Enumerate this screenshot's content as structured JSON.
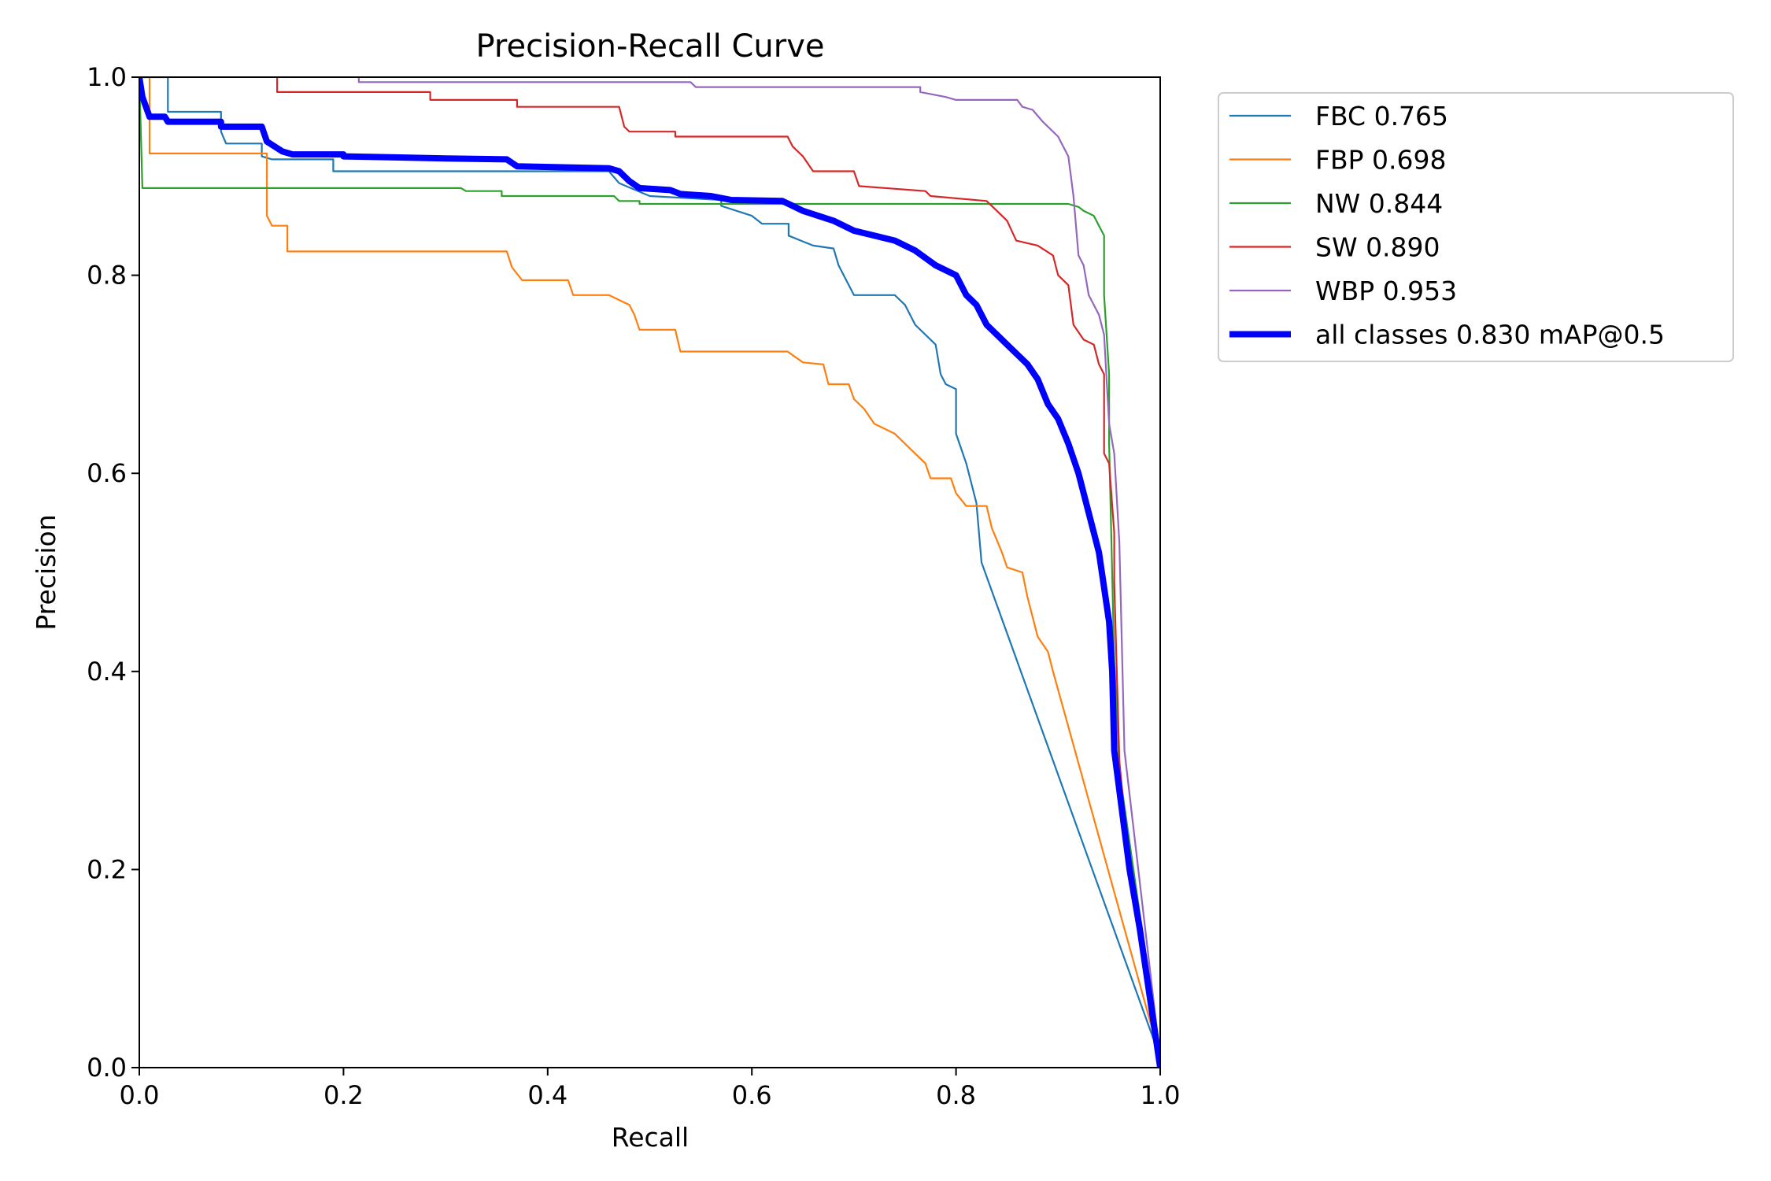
{
  "chart_data": {
    "type": "line",
    "title": "Precision-Recall Curve",
    "xlabel": "Recall",
    "ylabel": "Precision",
    "xlim": [
      0,
      1
    ],
    "ylim": [
      0,
      1
    ],
    "xticks": [
      "0.0",
      "0.2",
      "0.4",
      "0.6",
      "0.8",
      "1.0"
    ],
    "yticks": [
      "0.0",
      "0.2",
      "0.4",
      "0.6",
      "0.8",
      "1.0"
    ],
    "grid": false,
    "legend_position": "outside-top-right",
    "series": [
      {
        "name": "FBC 0.765",
        "color": "#1f77b4",
        "width": "thin",
        "points": [
          [
            0,
            1
          ],
          [
            0.028,
            1
          ],
          [
            0.028,
            0.965
          ],
          [
            0.08,
            0.965
          ],
          [
            0.08,
            0.945
          ],
          [
            0.085,
            0.933
          ],
          [
            0.12,
            0.933
          ],
          [
            0.12,
            0.92
          ],
          [
            0.13,
            0.917
          ],
          [
            0.19,
            0.917
          ],
          [
            0.19,
            0.905
          ],
          [
            0.46,
            0.905
          ],
          [
            0.47,
            0.893
          ],
          [
            0.5,
            0.88
          ],
          [
            0.57,
            0.876
          ],
          [
            0.57,
            0.87
          ],
          [
            0.6,
            0.86
          ],
          [
            0.61,
            0.852
          ],
          [
            0.636,
            0.852
          ],
          [
            0.636,
            0.84
          ],
          [
            0.66,
            0.83
          ],
          [
            0.68,
            0.827
          ],
          [
            0.685,
            0.81
          ],
          [
            0.69,
            0.8
          ],
          [
            0.7,
            0.78
          ],
          [
            0.74,
            0.78
          ],
          [
            0.75,
            0.77
          ],
          [
            0.76,
            0.75
          ],
          [
            0.78,
            0.73
          ],
          [
            0.785,
            0.7
          ],
          [
            0.79,
            0.69
          ],
          [
            0.8,
            0.685
          ],
          [
            0.8,
            0.64
          ],
          [
            0.81,
            0.61
          ],
          [
            0.82,
            0.57
          ],
          [
            0.825,
            0.51
          ],
          [
            1.0,
            0.01
          ]
        ]
      },
      {
        "name": "FBP 0.698",
        "color": "#ff7f0e",
        "width": "thin",
        "points": [
          [
            0,
            1
          ],
          [
            0.01,
            1
          ],
          [
            0.01,
            0.923
          ],
          [
            0.125,
            0.923
          ],
          [
            0.125,
            0.86
          ],
          [
            0.13,
            0.85
          ],
          [
            0.145,
            0.85
          ],
          [
            0.145,
            0.824
          ],
          [
            0.36,
            0.824
          ],
          [
            0.365,
            0.808
          ],
          [
            0.375,
            0.795
          ],
          [
            0.42,
            0.795
          ],
          [
            0.425,
            0.78
          ],
          [
            0.46,
            0.78
          ],
          [
            0.48,
            0.77
          ],
          [
            0.485,
            0.76
          ],
          [
            0.49,
            0.745
          ],
          [
            0.525,
            0.745
          ],
          [
            0.53,
            0.723
          ],
          [
            0.635,
            0.723
          ],
          [
            0.65,
            0.712
          ],
          [
            0.67,
            0.71
          ],
          [
            0.675,
            0.69
          ],
          [
            0.695,
            0.69
          ],
          [
            0.7,
            0.675
          ],
          [
            0.71,
            0.665
          ],
          [
            0.72,
            0.65
          ],
          [
            0.74,
            0.64
          ],
          [
            0.755,
            0.625
          ],
          [
            0.77,
            0.61
          ],
          [
            0.775,
            0.595
          ],
          [
            0.795,
            0.595
          ],
          [
            0.8,
            0.58
          ],
          [
            0.81,
            0.567
          ],
          [
            0.83,
            0.567
          ],
          [
            0.835,
            0.545
          ],
          [
            0.845,
            0.52
          ],
          [
            0.85,
            0.505
          ],
          [
            0.865,
            0.5
          ],
          [
            0.87,
            0.475
          ],
          [
            0.88,
            0.435
          ],
          [
            0.89,
            0.42
          ],
          [
            0.895,
            0.4
          ],
          [
            1.0,
            0.01
          ]
        ]
      },
      {
        "name": "NW 0.844",
        "color": "#2ca02c",
        "width": "thin",
        "points": [
          [
            0,
            1
          ],
          [
            0.003,
            0.888
          ],
          [
            0.315,
            0.888
          ],
          [
            0.32,
            0.885
          ],
          [
            0.355,
            0.885
          ],
          [
            0.355,
            0.88
          ],
          [
            0.465,
            0.88
          ],
          [
            0.47,
            0.875
          ],
          [
            0.49,
            0.875
          ],
          [
            0.49,
            0.872
          ],
          [
            0.91,
            0.872
          ],
          [
            0.92,
            0.869
          ],
          [
            0.925,
            0.865
          ],
          [
            0.935,
            0.86
          ],
          [
            0.94,
            0.85
          ],
          [
            0.945,
            0.84
          ],
          [
            0.945,
            0.78
          ],
          [
            0.95,
            0.7
          ],
          [
            0.95,
            0.63
          ],
          [
            0.955,
            0.41
          ],
          [
            0.958,
            0.35
          ],
          [
            0.96,
            0.3
          ],
          [
            1.0,
            0.01
          ]
        ]
      },
      {
        "name": "SW 0.890",
        "color": "#d62728",
        "width": "thin",
        "points": [
          [
            0.135,
            1
          ],
          [
            0.135,
            0.985
          ],
          [
            0.285,
            0.985
          ],
          [
            0.285,
            0.977
          ],
          [
            0.37,
            0.977
          ],
          [
            0.37,
            0.97
          ],
          [
            0.47,
            0.97
          ],
          [
            0.475,
            0.95
          ],
          [
            0.48,
            0.945
          ],
          [
            0.525,
            0.945
          ],
          [
            0.525,
            0.94
          ],
          [
            0.635,
            0.94
          ],
          [
            0.64,
            0.93
          ],
          [
            0.65,
            0.92
          ],
          [
            0.66,
            0.905
          ],
          [
            0.7,
            0.905
          ],
          [
            0.705,
            0.89
          ],
          [
            0.77,
            0.885
          ],
          [
            0.775,
            0.88
          ],
          [
            0.83,
            0.875
          ],
          [
            0.84,
            0.865
          ],
          [
            0.85,
            0.855
          ],
          [
            0.859,
            0.835
          ],
          [
            0.88,
            0.83
          ],
          [
            0.895,
            0.82
          ],
          [
            0.9,
            0.8
          ],
          [
            0.91,
            0.79
          ],
          [
            0.915,
            0.75
          ],
          [
            0.925,
            0.735
          ],
          [
            0.935,
            0.73
          ],
          [
            0.94,
            0.71
          ],
          [
            0.945,
            0.7
          ],
          [
            0.945,
            0.62
          ],
          [
            0.95,
            0.61
          ],
          [
            0.955,
            0.54
          ],
          [
            0.955,
            0.49
          ],
          [
            0.96,
            0.31
          ],
          [
            0.97,
            0.2
          ],
          [
            1.0,
            0.01
          ]
        ]
      },
      {
        "name": "WBP 0.953",
        "color": "#9467bd",
        "width": "thin",
        "points": [
          [
            0.215,
            1
          ],
          [
            0.215,
            0.995
          ],
          [
            0.54,
            0.995
          ],
          [
            0.545,
            0.99
          ],
          [
            0.765,
            0.99
          ],
          [
            0.765,
            0.985
          ],
          [
            0.79,
            0.98
          ],
          [
            0.8,
            0.977
          ],
          [
            0.86,
            0.977
          ],
          [
            0.865,
            0.97
          ],
          [
            0.875,
            0.967
          ],
          [
            0.885,
            0.955
          ],
          [
            0.9,
            0.94
          ],
          [
            0.905,
            0.93
          ],
          [
            0.91,
            0.92
          ],
          [
            0.915,
            0.88
          ],
          [
            0.92,
            0.82
          ],
          [
            0.925,
            0.81
          ],
          [
            0.93,
            0.78
          ],
          [
            0.94,
            0.76
          ],
          [
            0.945,
            0.74
          ],
          [
            0.95,
            0.65
          ],
          [
            0.955,
            0.62
          ],
          [
            0.96,
            0.53
          ],
          [
            0.965,
            0.32
          ],
          [
            1.0,
            0.01
          ]
        ]
      },
      {
        "name": "all classes 0.830 mAP@0.5",
        "color": "#0000ff",
        "width": "thick",
        "points": [
          [
            0,
            1
          ],
          [
            0.003,
            0.98
          ],
          [
            0.01,
            0.96
          ],
          [
            0.025,
            0.96
          ],
          [
            0.028,
            0.955
          ],
          [
            0.08,
            0.955
          ],
          [
            0.08,
            0.95
          ],
          [
            0.12,
            0.95
          ],
          [
            0.125,
            0.935
          ],
          [
            0.14,
            0.925
          ],
          [
            0.15,
            0.922
          ],
          [
            0.2,
            0.922
          ],
          [
            0.2,
            0.92
          ],
          [
            0.3,
            0.918
          ],
          [
            0.36,
            0.917
          ],
          [
            0.37,
            0.91
          ],
          [
            0.46,
            0.908
          ],
          [
            0.47,
            0.905
          ],
          [
            0.48,
            0.895
          ],
          [
            0.49,
            0.888
          ],
          [
            0.52,
            0.886
          ],
          [
            0.53,
            0.882
          ],
          [
            0.56,
            0.88
          ],
          [
            0.58,
            0.876
          ],
          [
            0.63,
            0.875
          ],
          [
            0.64,
            0.87
          ],
          [
            0.65,
            0.865
          ],
          [
            0.68,
            0.855
          ],
          [
            0.7,
            0.845
          ],
          [
            0.72,
            0.84
          ],
          [
            0.74,
            0.835
          ],
          [
            0.76,
            0.825
          ],
          [
            0.78,
            0.81
          ],
          [
            0.8,
            0.8
          ],
          [
            0.81,
            0.78
          ],
          [
            0.82,
            0.77
          ],
          [
            0.83,
            0.75
          ],
          [
            0.85,
            0.73
          ],
          [
            0.87,
            0.71
          ],
          [
            0.88,
            0.695
          ],
          [
            0.89,
            0.67
          ],
          [
            0.9,
            0.655
          ],
          [
            0.91,
            0.63
          ],
          [
            0.92,
            0.6
          ],
          [
            0.93,
            0.56
          ],
          [
            0.94,
            0.52
          ],
          [
            0.95,
            0.45
          ],
          [
            0.953,
            0.4
          ],
          [
            0.955,
            0.32
          ],
          [
            0.96,
            0.28
          ],
          [
            0.97,
            0.2
          ],
          [
            0.98,
            0.14
          ],
          [
            1.0,
            0.0
          ]
        ]
      }
    ]
  }
}
